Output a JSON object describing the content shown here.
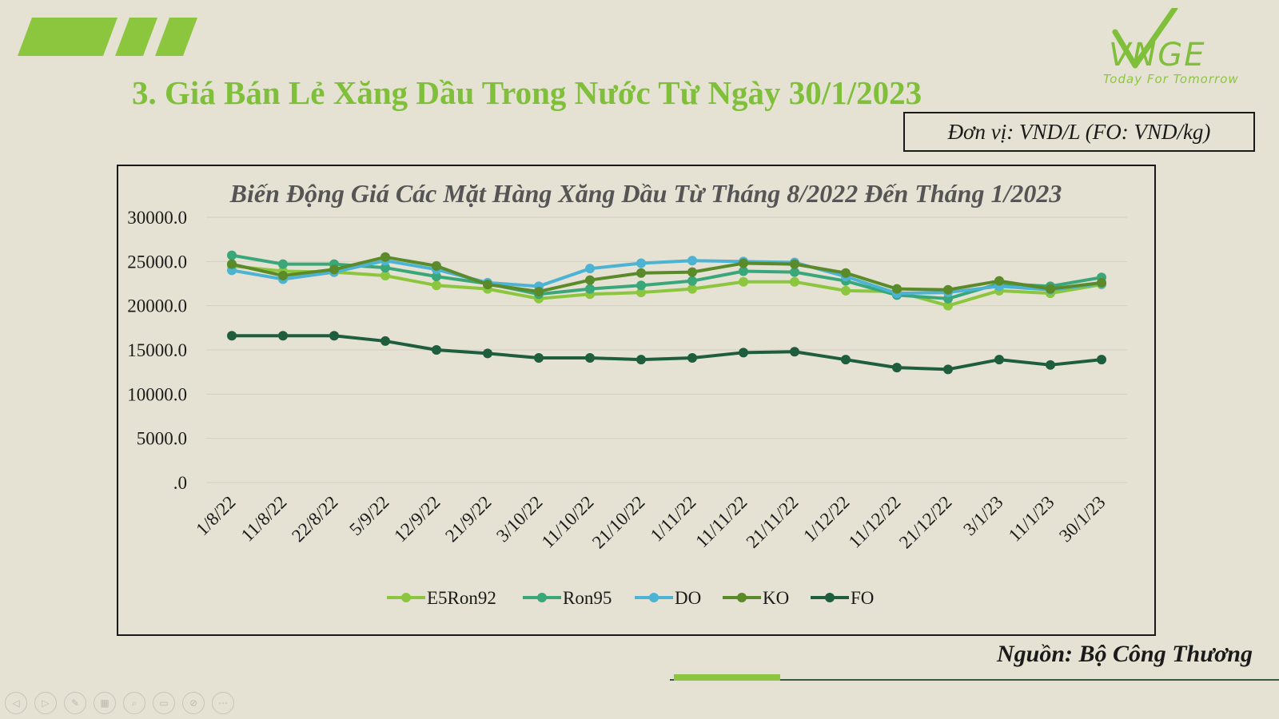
{
  "title": "3. Giá Bán Lẻ Xăng Dầu Trong Nước Từ Ngày 30/1/2023",
  "logo": {
    "brand": "VNGE",
    "tagline": "Today For Tomorrow"
  },
  "unit_label": "Đơn vị: VND/L (FO: VND/kg)",
  "source": "Nguồn: Bộ Công Thương",
  "colors": {
    "title": "#7fbf3a",
    "E5Ron92": "#8cc63f",
    "Ron95": "#3aa77a",
    "DO": "#4cb3d4",
    "KO": "#5a8a2a",
    "FO": "#1e5e3e"
  },
  "toolbar": {
    "icons": [
      "prev-icon",
      "next-icon",
      "pen-icon",
      "slides-icon",
      "zoom-icon",
      "subtitle-icon",
      "camera-off-icon",
      "more-icon"
    ]
  },
  "chart_data": {
    "type": "line",
    "title": "Biến Động Giá Các Mặt Hàng Xăng Dầu Từ Tháng 8/2022 Đến Tháng 1/2023",
    "xlabel": "",
    "ylabel": "",
    "ylim": [
      0,
      30000
    ],
    "yticks": [
      ".0",
      "5000.0",
      "10000.0",
      "15000.0",
      "20000.0",
      "25000.0",
      "30000.0"
    ],
    "grid": true,
    "legend": "bottom",
    "categories": [
      "1/8/22",
      "11/8/22",
      "22/8/22",
      "5/9/22",
      "12/9/22",
      "21/9/22",
      "3/10/22",
      "11/10/22",
      "21/10/22",
      "1/11/22",
      "11/11/22",
      "21/11/22",
      "1/12/22",
      "11/12/22",
      "21/12/22",
      "3/1/23",
      "11/1/23",
      "30/1/23"
    ],
    "series": [
      {
        "name": "E5Ron92",
        "values": [
          24500,
          23900,
          23800,
          23400,
          22300,
          21900,
          20800,
          21300,
          21500,
          21900,
          22700,
          22700,
          21700,
          21600,
          20000,
          21700,
          21400,
          22400
        ]
      },
      {
        "name": "Ron95",
        "values": [
          25700,
          24700,
          24700,
          24300,
          23300,
          22500,
          21300,
          21900,
          22300,
          22800,
          23900,
          23800,
          22800,
          21200,
          20800,
          22500,
          22200,
          23200
        ]
      },
      {
        "name": "DO",
        "values": [
          24000,
          23000,
          23800,
          25100,
          24100,
          22600,
          22200,
          24200,
          24800,
          25100,
          25000,
          24900,
          23300,
          21400,
          21500,
          22200,
          21800,
          22500
        ]
      },
      {
        "name": "KO",
        "values": [
          24700,
          23400,
          24100,
          25500,
          24500,
          22400,
          21600,
          22900,
          23700,
          23800,
          24800,
          24700,
          23700,
          21900,
          21800,
          22800,
          21900,
          22600
        ]
      },
      {
        "name": "FO",
        "values": [
          16600,
          16600,
          16600,
          16000,
          15000,
          14600,
          14100,
          14100,
          13900,
          14100,
          14700,
          14800,
          13900,
          13000,
          12800,
          13900,
          13300,
          13900
        ]
      }
    ]
  }
}
